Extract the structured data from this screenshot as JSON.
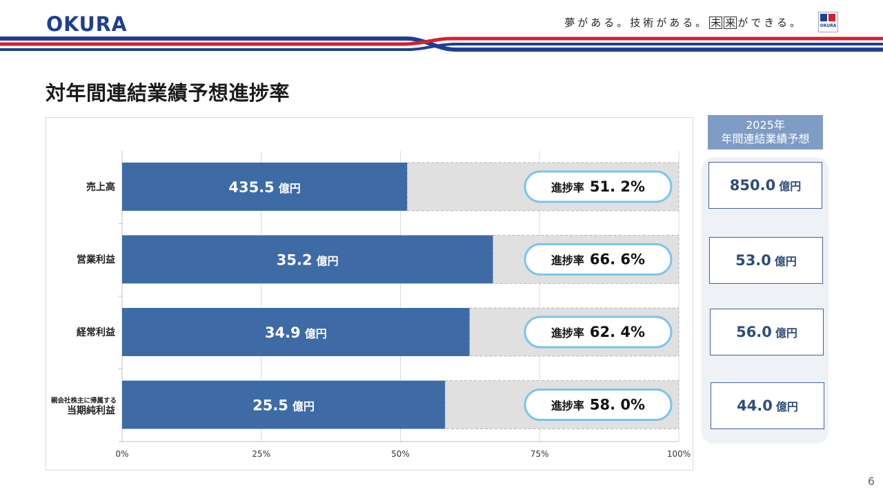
{
  "header": {
    "logo_text": "OKURA",
    "tagline_part1": "夢がある。技術がある。",
    "tagline_boxed": [
      "未",
      "来"
    ],
    "tagline_part2": "ができる。",
    "mini_logo_text": "OKURA",
    "brand_colors": {
      "blue": "#1f3f94",
      "red": "#d6202a"
    }
  },
  "page_title": "対年間連結業績予想進捗率",
  "forecast": {
    "header_line1": "2025年",
    "header_line2": "年間連結業績予想",
    "unit": "億円",
    "values": [
      "850.0",
      "53.0",
      "56.0",
      "44.0"
    ]
  },
  "page_number": "6",
  "chart_data": {
    "type": "bar",
    "orientation": "horizontal",
    "stacked_to_100": true,
    "categories": [
      "売上高",
      "営業利益",
      "経常利益",
      "親会社株主に帰属する当期純利益"
    ],
    "category_label_lines": [
      [
        "売上高"
      ],
      [
        "営業利益"
      ],
      [
        "経常利益"
      ],
      [
        "親会社株主に帰属する",
        "当期純利益"
      ]
    ],
    "series": [
      {
        "values": [
          51.2,
          66.6,
          62.4,
          58.0
        ],
        "color": "#3e6ba6"
      }
    ],
    "bar_labels": [
      "435.5",
      "35.2",
      "34.9",
      "25.5"
    ],
    "bar_label_unit": "億円",
    "progress_label": "進捗率",
    "progress_texts": [
      "51. 2%",
      "66. 6%",
      "62. 4%",
      "58. 0%"
    ],
    "remainder_color": "#e0e0e0",
    "pill_border_color": "#7cc4ea",
    "xlim": [
      0,
      100
    ],
    "x_ticks": [
      "0%",
      "25%",
      "50%",
      "75%",
      "100%"
    ],
    "grid": true
  }
}
